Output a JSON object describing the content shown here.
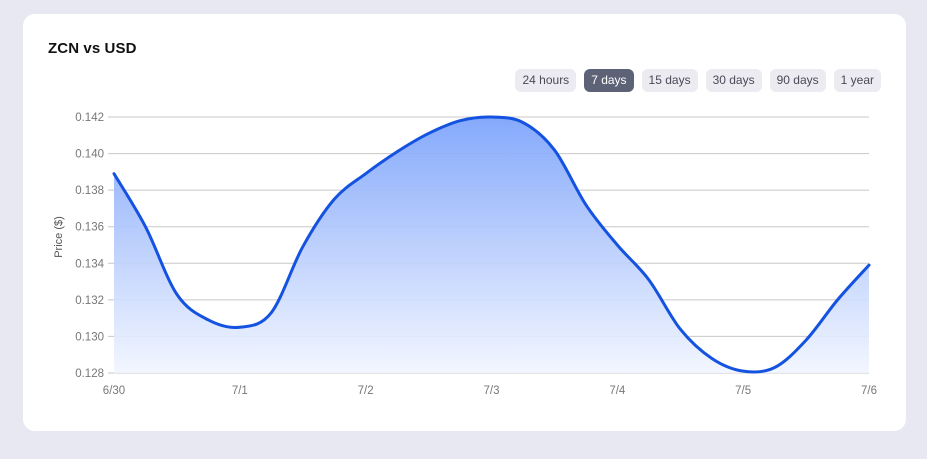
{
  "card": {
    "title": "ZCN vs USD"
  },
  "range_tabs": [
    {
      "label": "24 hours",
      "active": false
    },
    {
      "label": "7 days",
      "active": true
    },
    {
      "label": "15 days",
      "active": false
    },
    {
      "label": "30 days",
      "active": false
    },
    {
      "label": "90 days",
      "active": false
    },
    {
      "label": "1 year",
      "active": false
    }
  ],
  "colors": {
    "line": "#1452e0",
    "fill_top": "#7ea4fb",
    "fill_bottom": "#f1f5ff",
    "grid": "#c8c8c8",
    "active_tab": "#5d6277"
  },
  "chart_data": {
    "type": "area",
    "title": "",
    "xlabel": "",
    "ylabel": "Price ($)",
    "categories": [
      "6/30",
      "7/1",
      "7/2",
      "7/3",
      "7/4",
      "7/5",
      "7/6"
    ],
    "x": [
      0,
      0.25,
      0.5,
      0.75,
      1,
      1.25,
      1.5,
      1.75,
      2,
      2.25,
      2.5,
      2.75,
      3,
      3.25,
      3.5,
      3.75,
      4,
      4.25,
      4.5,
      4.75,
      5,
      5.25,
      5.5,
      5.75,
      6
    ],
    "series": [
      {
        "values": [
          0.1389,
          0.136,
          0.1323,
          0.1309,
          0.1305,
          0.1313,
          0.1349,
          0.1375,
          0.1389,
          0.1401,
          0.1411,
          0.1418,
          0.142,
          0.1417,
          0.1402,
          0.1372,
          0.135,
          0.1331,
          0.1304,
          0.1288,
          0.1281,
          0.1283,
          0.1298,
          0.132,
          0.1339
        ]
      }
    ],
    "ylim": [
      0.128,
      0.142
    ],
    "yticks": [
      "0.128",
      "0.130",
      "0.132",
      "0.134",
      "0.136",
      "0.138",
      "0.140",
      "0.142"
    ],
    "grid": true,
    "legend": "none"
  }
}
